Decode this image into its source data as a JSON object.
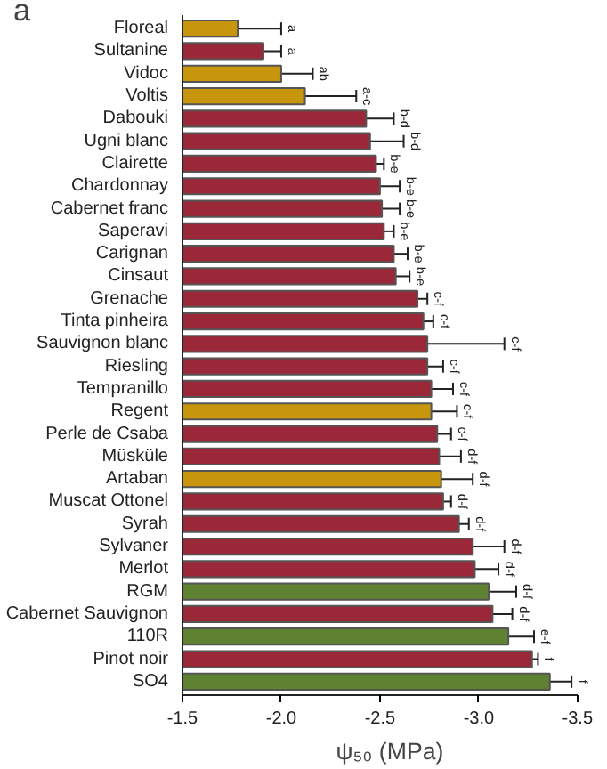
{
  "chart_data": {
    "type": "bar",
    "orientation": "horizontal",
    "xlabel": "ψ₅₀ (MPa)",
    "categories": [
      "Floreal",
      "Sultanine",
      "Vidoc",
      "Voltis",
      "Dabouki",
      "Ugni blanc",
      "Clairette",
      "Chardonnay",
      "Cabernet franc",
      "Saperavi",
      "Carignan",
      "Cinsaut",
      "Grenache",
      "Tinta pinheira",
      "Sauvignon blanc",
      "Riesling",
      "Tempranillo",
      "Regent",
      "Perle de Csaba",
      "Müsküle",
      "Artaban",
      "Muscat Ottonel",
      "Syrah",
      "Sylvaner",
      "Merlot",
      "RGM",
      "Cabernet Sauvignon",
      "110R",
      "Pinot noir",
      "SO4"
    ],
    "values": [
      -1.78,
      -1.91,
      -2.0,
      -2.12,
      -2.43,
      -2.45,
      -2.48,
      -2.5,
      -2.51,
      -2.52,
      -2.57,
      -2.58,
      -2.69,
      -2.72,
      -2.74,
      -2.74,
      -2.76,
      -2.76,
      -2.79,
      -2.8,
      -2.81,
      -2.82,
      -2.9,
      -2.97,
      -2.98,
      -3.05,
      -3.07,
      -3.15,
      -3.27,
      -3.36
    ],
    "errors": [
      0.22,
      0.09,
      0.16,
      0.26,
      0.14,
      0.17,
      0.04,
      0.1,
      0.09,
      0.05,
      0.07,
      0.07,
      0.05,
      0.05,
      0.39,
      0.08,
      0.11,
      0.13,
      0.07,
      0.11,
      0.16,
      0.04,
      0.05,
      0.16,
      0.12,
      0.14,
      0.1,
      0.13,
      0.03,
      0.11
    ],
    "colors": [
      "#c8960c",
      "#9b2838",
      "#c8960c",
      "#c8960c",
      "#9b2838",
      "#9b2838",
      "#9b2838",
      "#9b2838",
      "#9b2838",
      "#9b2838",
      "#9b2838",
      "#9b2838",
      "#9b2838",
      "#9b2838",
      "#9b2838",
      "#9b2838",
      "#9b2838",
      "#c8960c",
      "#9b2838",
      "#9b2838",
      "#c8960c",
      "#9b2838",
      "#9b2838",
      "#9b2838",
      "#9b2838",
      "#5e8232",
      "#9b2838",
      "#5e8232",
      "#9b2838",
      "#5e8232"
    ],
    "xlim": [
      -1.5,
      -3.5
    ],
    "xticks": [
      {
        "value": -1.5,
        "label": "-1.5"
      },
      {
        "value": -2,
        "label": "-2.0"
      },
      {
        "value": -2.5,
        "label": "-2.5"
      },
      {
        "value": -3,
        "label": "-3.0"
      },
      {
        "value": -3.5,
        "label": "-3.5"
      }
    ],
    "grid": false,
    "annotations": [
      "a",
      "a",
      "a",
      "ab",
      "a-c",
      "b-d",
      "b-d",
      "b-e",
      "b-e",
      "b-e",
      "b-e",
      "b-e",
      "b-e",
      "c-f",
      "c-f",
      "c-f",
      "c-f",
      "c-f",
      "c-f",
      "c-f",
      "d-f",
      "d-f",
      "d-f",
      "d-f",
      "d-f",
      "d-f",
      "d-f",
      "d-f",
      "e-f",
      "f",
      "f"
    ]
  }
}
